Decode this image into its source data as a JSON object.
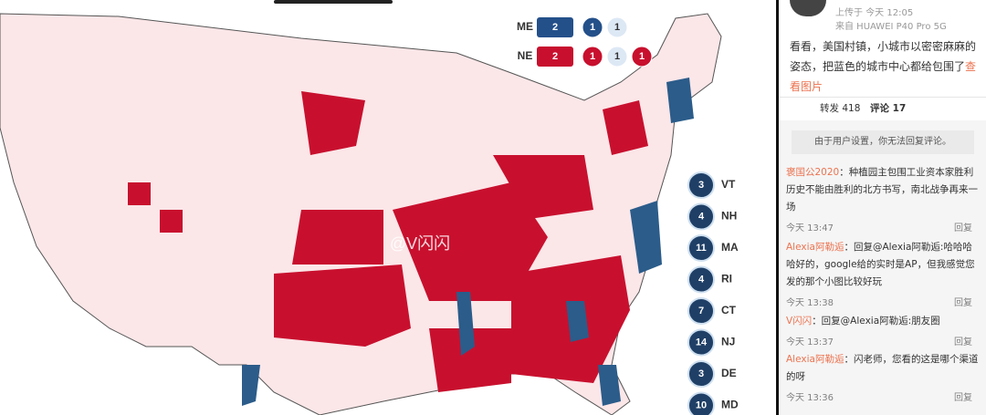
{
  "map": {
    "legend": [
      {
        "state": "ME",
        "values": [
          2,
          1,
          1
        ]
      },
      {
        "state": "NE",
        "values": [
          2,
          1,
          1,
          1
        ]
      }
    ],
    "states": [
      {
        "votes": 3,
        "label": "VT"
      },
      {
        "votes": 4,
        "label": "NH"
      },
      {
        "votes": 11,
        "label": "MA"
      },
      {
        "votes": 4,
        "label": "RI"
      },
      {
        "votes": 7,
        "label": "CT"
      },
      {
        "votes": 14,
        "label": "NJ"
      },
      {
        "votes": 3,
        "label": "DE"
      },
      {
        "votes": 10,
        "label": "MD"
      }
    ],
    "watermark": "@V闪闪"
  },
  "post": {
    "upload": "上传于 今天 12:05",
    "device": "来自 HUAWEI P40 Pro 5G",
    "text": "看看，美国村镇，小城市以密密麻麻的姿态，把蓝色的城市中心都给包围了",
    "link": "查看图片",
    "repost": "转发 418",
    "comments_tab": "评论 17",
    "notice": "由于用户设置，你无法回复评论。"
  },
  "comments": [
    {
      "user": "褒国公2020",
      "text": "：种植园主包围工业资本家胜利历史不能由胜利的北方书写，南北战争再来一场",
      "time": "今天 13:47",
      "reply": "回复"
    },
    {
      "user": "Alexia阿勒逅",
      "text": "：回复@Alexia阿勒逅:哈哈哈哈好的，google给的实时是AP，但我感觉您发的那个小图比较好玩",
      "time": "今天 13:38",
      "reply": "回复"
    },
    {
      "user": "V闪闪",
      "text": "：回复@Alexia阿勒逅:朋友圈",
      "time": "今天 13:37",
      "reply": "回复"
    },
    {
      "user": "Alexia阿勒逅",
      "text": "：闪老师，您看的这是哪个渠道的呀",
      "time": "今天 13:36",
      "reply": "回复"
    }
  ]
}
